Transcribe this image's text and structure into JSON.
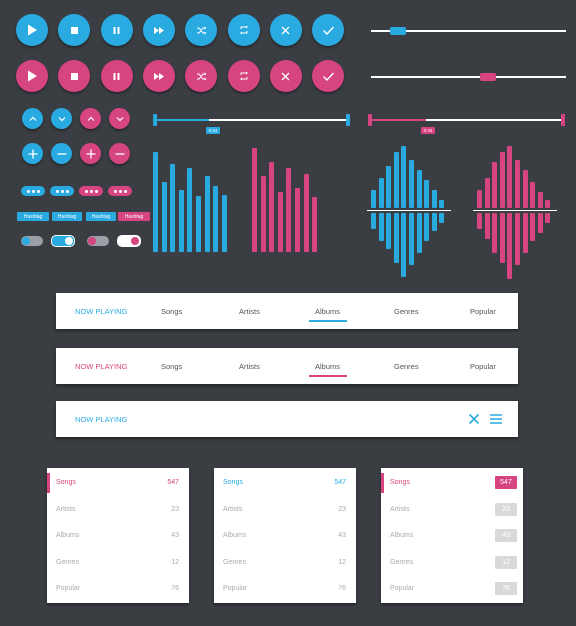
{
  "colors": {
    "blue": "#29abe2",
    "pink": "#d6457f",
    "bg": "#3a3d42",
    "white": "#ffffff"
  },
  "controls": {
    "icons": [
      "play-icon",
      "stop-icon",
      "pause-icon",
      "fast-forward-icon",
      "shuffle-icon",
      "repeat-icon",
      "close-icon",
      "check-icon"
    ]
  },
  "sliders": {
    "blue_position": 0.14,
    "pink_position": 0.6
  },
  "tags": {
    "label": "Hashtag"
  },
  "range": {
    "blue_label": "0:34",
    "pink_label": "0:34",
    "blue_fill": 0.28,
    "pink_fill": 0.29
  },
  "eq": {
    "blue_bars": [
      100,
      70,
      88,
      62,
      84,
      56,
      76,
      66,
      57
    ],
    "pink_bars": [
      104,
      76,
      90,
      60,
      84,
      64,
      78,
      55
    ],
    "blue_wave_up": [
      18,
      30,
      42,
      56,
      62,
      48,
      38,
      28,
      18,
      8
    ],
    "blue_wave_down": [
      16,
      28,
      36,
      50,
      64,
      52,
      40,
      28,
      18,
      10
    ],
    "pink_wave_up": [
      18,
      30,
      46,
      56,
      62,
      48,
      38,
      26,
      16,
      8
    ],
    "pink_wave_down": [
      16,
      26,
      40,
      50,
      66,
      52,
      40,
      28,
      20,
      10
    ]
  },
  "nav": {
    "now_playing": "NOW PLAYING",
    "items": [
      "Songs",
      "Artists",
      "Albums",
      "Genres",
      "Popular"
    ],
    "active": "Albums"
  },
  "lists": {
    "items": [
      {
        "label": "Songs",
        "count": "547"
      },
      {
        "label": "Artists",
        "count": "23"
      },
      {
        "label": "Albums",
        "count": "43"
      },
      {
        "label": "Genres",
        "count": "12"
      },
      {
        "label": "Popular",
        "count": "76"
      }
    ]
  }
}
